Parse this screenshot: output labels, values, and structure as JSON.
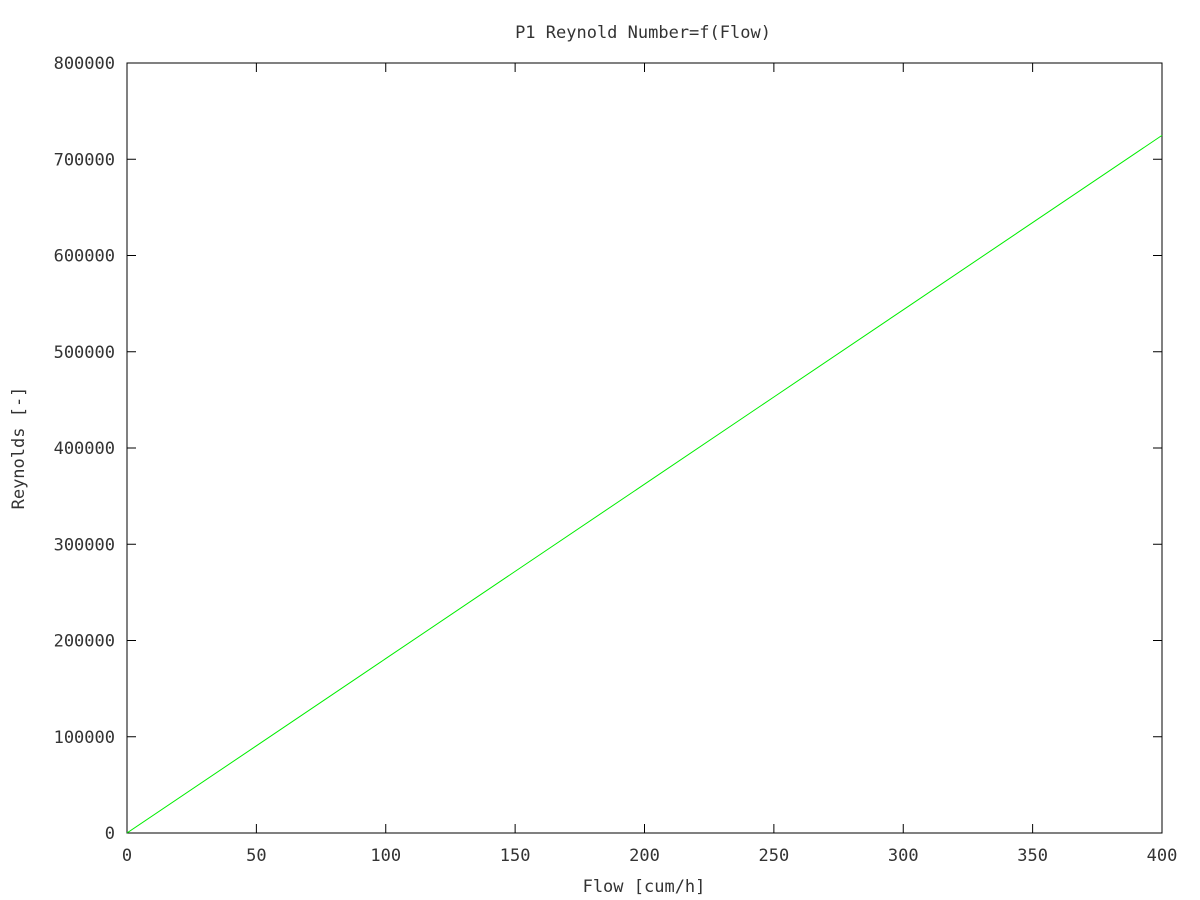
{
  "chart_data": {
    "type": "line",
    "title": "P1 Reynold Number=f(Flow)",
    "xlabel": "Flow [cum/h]",
    "ylabel": "Reynolds [-]",
    "xlim": [
      0,
      400
    ],
    "ylim": [
      0,
      800000
    ],
    "x_ticks": [
      0,
      50,
      100,
      150,
      200,
      250,
      300,
      350,
      400
    ],
    "y_ticks": [
      0,
      100000,
      200000,
      300000,
      400000,
      500000,
      600000,
      700000,
      800000
    ],
    "x_tick_labels": [
      "0",
      "50",
      "100",
      "150",
      "200",
      "250",
      "300",
      "350",
      "400"
    ],
    "y_tick_labels": [
      "0",
      "100000",
      "200000",
      "300000",
      "400000",
      "500000",
      "600000",
      "700000",
      "800000"
    ],
    "grid": false,
    "series": [
      {
        "color": "#00ee00",
        "x": [
          0,
          50,
          100,
          150,
          200,
          250,
          300,
          350,
          400
        ],
        "y": [
          0,
          90600,
          181200,
          271800,
          362400,
          453000,
          543600,
          634200,
          724800
        ]
      }
    ]
  }
}
